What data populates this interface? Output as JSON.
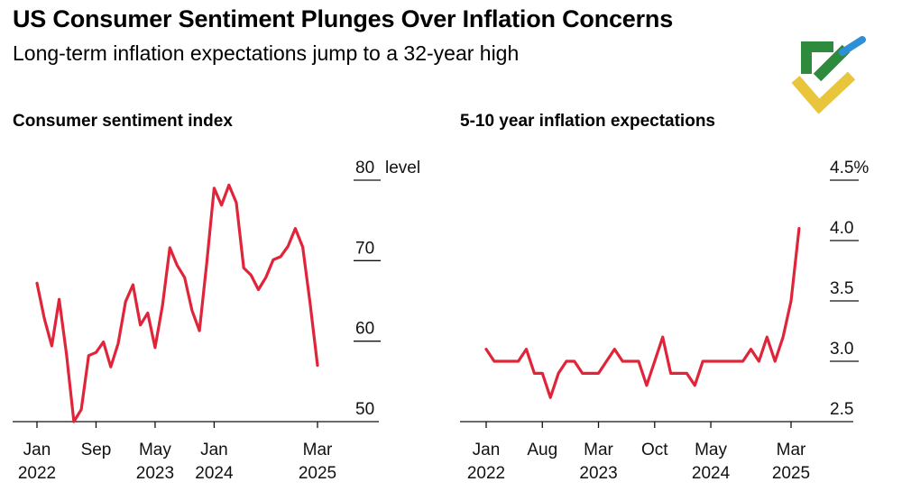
{
  "header": {
    "title": "US Consumer Sentiment Plunges Over Inflation Concerns",
    "subtitle": "Long-term inflation expectations jump to a 32-year high"
  },
  "logo": {
    "icon": "brand-logo-icon",
    "colors": [
      "#2e8b3e",
      "#e8c53a",
      "#2f8fd6"
    ]
  },
  "line_color": "#e0243a",
  "chart_data": [
    {
      "type": "line",
      "title": "Consumer sentiment index",
      "yunit_label": "level",
      "ylim": [
        50,
        80
      ],
      "y_ticks": [
        50,
        60,
        70,
        80
      ],
      "y_tick_labels": [
        "50",
        "60",
        "70",
        "80"
      ],
      "x_ticks": [
        {
          "month": 0,
          "line1": "Jan",
          "line2": "2022"
        },
        {
          "month": 8,
          "line1": "Sep",
          "line2": ""
        },
        {
          "month": 16,
          "line1": "May",
          "line2": "2023"
        },
        {
          "month": 24,
          "line1": "Jan",
          "line2": "2024"
        },
        {
          "month": 38,
          "line1": "Mar",
          "line2": "2025"
        }
      ],
      "x_start": "2022-01",
      "series": [
        {
          "values": [
            67.2,
            62.8,
            59.4,
            65.2,
            58.4,
            50.0,
            51.5,
            58.2,
            58.6,
            59.9,
            56.8,
            59.7,
            64.9,
            67.0,
            62.0,
            63.5,
            59.2,
            64.4,
            71.6,
            69.4,
            67.9,
            63.8,
            61.3,
            69.7,
            79.0,
            76.9,
            79.4,
            77.2,
            69.1,
            68.2,
            66.4,
            67.9,
            70.1,
            70.5,
            71.8,
            74.0,
            71.7,
            64.7,
            57.0
          ]
        }
      ]
    },
    {
      "type": "line",
      "title": "5-10 year inflation expectations",
      "ylim": [
        2.5,
        4.5
      ],
      "y_ticks": [
        2.5,
        3.0,
        3.5,
        4.0,
        4.5
      ],
      "y_tick_labels": [
        "2.5",
        "3.0",
        "3.5",
        "4.0",
        "4.5%"
      ],
      "x_ticks": [
        {
          "month": 0,
          "line1": "Jan",
          "line2": "2022"
        },
        {
          "month": 7,
          "line1": "Aug",
          "line2": ""
        },
        {
          "month": 14,
          "line1": "Mar",
          "line2": "2023"
        },
        {
          "month": 21,
          "line1": "Oct",
          "line2": ""
        },
        {
          "month": 28,
          "line1": "May",
          "line2": "2024"
        },
        {
          "month": 38,
          "line1": "Mar",
          "line2": "2025"
        }
      ],
      "x_start": "2022-01",
      "series": [
        {
          "values": [
            3.1,
            3.0,
            3.0,
            3.0,
            3.0,
            3.1,
            2.9,
            2.9,
            2.7,
            2.9,
            3.0,
            3.0,
            2.9,
            2.9,
            2.9,
            3.0,
            3.1,
            3.0,
            3.0,
            3.0,
            2.8,
            3.0,
            3.2,
            2.9,
            2.9,
            2.9,
            2.8,
            3.0,
            3.0,
            3.0,
            3.0,
            3.0,
            3.0,
            3.1,
            3.0,
            3.2,
            3.0,
            3.2,
            3.5,
            4.1
          ]
        }
      ]
    }
  ]
}
